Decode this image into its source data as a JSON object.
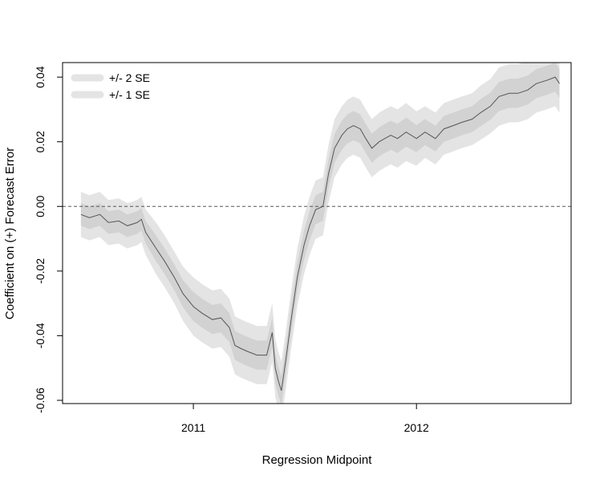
{
  "chart_data": {
    "type": "line",
    "title": "",
    "xlabel": "Regression Midpoint",
    "ylabel": "Coefficient on (+) Forecast Error",
    "x_ticks": [
      "2011",
      "2012"
    ],
    "y_ticks": [
      "-0.06",
      "-0.04",
      "-0.02",
      "0.00",
      "0.02",
      "0.04"
    ],
    "ylim": [
      -0.061,
      0.0445
    ],
    "xlim": [
      "2010-06-01",
      "2012-09-10"
    ],
    "reference_line": {
      "y": 0.0,
      "style": "dashed"
    },
    "legend": {
      "placement": "top-left",
      "entries": [
        "+/- 2 SE",
        "+/- 1 SE"
      ]
    },
    "series": [
      {
        "x": [
          "2010-07-01",
          "2010-07-15",
          "2010-08-01",
          "2010-08-15",
          "2010-09-01",
          "2010-09-15",
          "2010-10-01",
          "2010-10-08",
          "2010-10-15",
          "2010-11-01",
          "2010-11-15",
          "2010-12-01",
          "2010-12-15",
          "2011-01-01",
          "2011-01-15",
          "2011-02-01",
          "2011-02-15",
          "2011-03-01",
          "2011-03-10",
          "2011-03-20",
          "2011-04-01",
          "2011-04-15",
          "2011-05-01",
          "2011-05-10",
          "2011-05-15",
          "2011-05-20",
          "2011-05-25",
          "2011-06-01",
          "2011-06-10",
          "2011-06-20",
          "2011-07-01",
          "2011-07-10",
          "2011-07-20",
          "2011-08-01",
          "2011-08-10",
          "2011-08-20",
          "2011-09-01",
          "2011-09-10",
          "2011-09-20",
          "2011-10-01",
          "2011-10-10",
          "2011-10-20",
          "2011-11-01",
          "2011-11-10",
          "2011-11-20",
          "2011-12-01",
          "2011-12-15",
          "2012-01-01",
          "2012-01-15",
          "2012-02-01",
          "2012-02-15",
          "2012-03-01",
          "2012-03-15",
          "2012-04-01",
          "2012-04-15",
          "2012-05-01",
          "2012-05-15",
          "2012-06-01",
          "2012-06-15",
          "2012-07-01",
          "2012-07-15",
          "2012-08-01",
          "2012-08-15",
          "2012-08-22"
        ],
        "values": [
          -0.0025,
          -0.0035,
          -0.0025,
          -0.005,
          -0.0045,
          -0.006,
          -0.005,
          -0.004,
          -0.008,
          -0.013,
          -0.017,
          -0.022,
          -0.027,
          -0.031,
          -0.033,
          -0.035,
          -0.0345,
          -0.0375,
          -0.043,
          -0.044,
          -0.045,
          -0.046,
          -0.046,
          -0.039,
          -0.05,
          -0.054,
          -0.057,
          -0.048,
          -0.035,
          -0.022,
          -0.012,
          -0.006,
          -0.001,
          0.0,
          0.01,
          0.018,
          0.022,
          0.024,
          0.025,
          0.024,
          0.021,
          0.018,
          0.02,
          0.021,
          0.022,
          0.021,
          0.023,
          0.021,
          0.023,
          0.021,
          0.024,
          0.025,
          0.026,
          0.027,
          0.029,
          0.031,
          0.034,
          0.035,
          0.035,
          0.036,
          0.038,
          0.039,
          0.04,
          0.038
        ],
        "se": [
          0.0035,
          0.0035,
          0.0035,
          0.0035,
          0.0035,
          0.0035,
          0.0035,
          0.0035,
          0.0035,
          0.004,
          0.004,
          0.004,
          0.0042,
          0.0045,
          0.0045,
          0.0045,
          0.0045,
          0.0045,
          0.0045,
          0.0045,
          0.0045,
          0.0045,
          0.0045,
          0.0045,
          0.0045,
          0.0045,
          0.0045,
          0.0045,
          0.0045,
          0.0045,
          0.0045,
          0.0045,
          0.0045,
          0.0045,
          0.0045,
          0.0045,
          0.0045,
          0.0045,
          0.0045,
          0.0045,
          0.0045,
          0.0045,
          0.0045,
          0.0045,
          0.0045,
          0.0045,
          0.0045,
          0.0042,
          0.004,
          0.004,
          0.004,
          0.004,
          0.004,
          0.004,
          0.0042,
          0.0042,
          0.0045,
          0.0045,
          0.0045,
          0.0045,
          0.0045,
          0.0045,
          0.0045,
          0.0045
        ]
      }
    ],
    "colors": {
      "band_2se": "#e4e4e4",
      "band_1se": "#d2d2d2",
      "line": "#555555",
      "axis": "#000000",
      "reference": "#555555"
    }
  }
}
